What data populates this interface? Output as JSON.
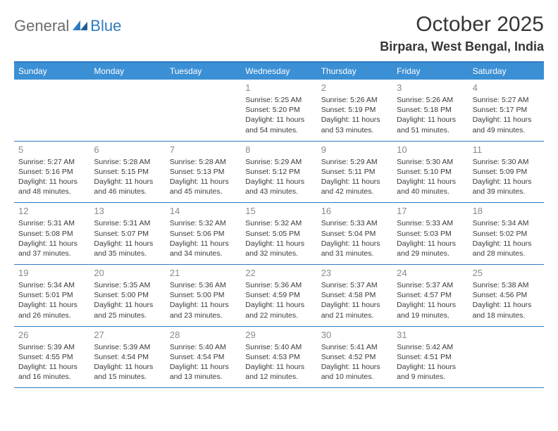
{
  "brand": {
    "part1": "General",
    "part2": "Blue"
  },
  "title": "October 2025",
  "location": "Birpara, West Bengal, India",
  "accent_color": "#3b8fd4",
  "border_color": "#2f7bbf",
  "day_headers": [
    "Sunday",
    "Monday",
    "Tuesday",
    "Wednesday",
    "Thursday",
    "Friday",
    "Saturday"
  ],
  "weeks": [
    [
      null,
      null,
      null,
      {
        "n": "1",
        "sr": "5:25 AM",
        "ss": "5:20 PM",
        "dl": "11 hours and 54 minutes."
      },
      {
        "n": "2",
        "sr": "5:26 AM",
        "ss": "5:19 PM",
        "dl": "11 hours and 53 minutes."
      },
      {
        "n": "3",
        "sr": "5:26 AM",
        "ss": "5:18 PM",
        "dl": "11 hours and 51 minutes."
      },
      {
        "n": "4",
        "sr": "5:27 AM",
        "ss": "5:17 PM",
        "dl": "11 hours and 49 minutes."
      }
    ],
    [
      {
        "n": "5",
        "sr": "5:27 AM",
        "ss": "5:16 PM",
        "dl": "11 hours and 48 minutes."
      },
      {
        "n": "6",
        "sr": "5:28 AM",
        "ss": "5:15 PM",
        "dl": "11 hours and 46 minutes."
      },
      {
        "n": "7",
        "sr": "5:28 AM",
        "ss": "5:13 PM",
        "dl": "11 hours and 45 minutes."
      },
      {
        "n": "8",
        "sr": "5:29 AM",
        "ss": "5:12 PM",
        "dl": "11 hours and 43 minutes."
      },
      {
        "n": "9",
        "sr": "5:29 AM",
        "ss": "5:11 PM",
        "dl": "11 hours and 42 minutes."
      },
      {
        "n": "10",
        "sr": "5:30 AM",
        "ss": "5:10 PM",
        "dl": "11 hours and 40 minutes."
      },
      {
        "n": "11",
        "sr": "5:30 AM",
        "ss": "5:09 PM",
        "dl": "11 hours and 39 minutes."
      }
    ],
    [
      {
        "n": "12",
        "sr": "5:31 AM",
        "ss": "5:08 PM",
        "dl": "11 hours and 37 minutes."
      },
      {
        "n": "13",
        "sr": "5:31 AM",
        "ss": "5:07 PM",
        "dl": "11 hours and 35 minutes."
      },
      {
        "n": "14",
        "sr": "5:32 AM",
        "ss": "5:06 PM",
        "dl": "11 hours and 34 minutes."
      },
      {
        "n": "15",
        "sr": "5:32 AM",
        "ss": "5:05 PM",
        "dl": "11 hours and 32 minutes."
      },
      {
        "n": "16",
        "sr": "5:33 AM",
        "ss": "5:04 PM",
        "dl": "11 hours and 31 minutes."
      },
      {
        "n": "17",
        "sr": "5:33 AM",
        "ss": "5:03 PM",
        "dl": "11 hours and 29 minutes."
      },
      {
        "n": "18",
        "sr": "5:34 AM",
        "ss": "5:02 PM",
        "dl": "11 hours and 28 minutes."
      }
    ],
    [
      {
        "n": "19",
        "sr": "5:34 AM",
        "ss": "5:01 PM",
        "dl": "11 hours and 26 minutes."
      },
      {
        "n": "20",
        "sr": "5:35 AM",
        "ss": "5:00 PM",
        "dl": "11 hours and 25 minutes."
      },
      {
        "n": "21",
        "sr": "5:36 AM",
        "ss": "5:00 PM",
        "dl": "11 hours and 23 minutes."
      },
      {
        "n": "22",
        "sr": "5:36 AM",
        "ss": "4:59 PM",
        "dl": "11 hours and 22 minutes."
      },
      {
        "n": "23",
        "sr": "5:37 AM",
        "ss": "4:58 PM",
        "dl": "11 hours and 21 minutes."
      },
      {
        "n": "24",
        "sr": "5:37 AM",
        "ss": "4:57 PM",
        "dl": "11 hours and 19 minutes."
      },
      {
        "n": "25",
        "sr": "5:38 AM",
        "ss": "4:56 PM",
        "dl": "11 hours and 18 minutes."
      }
    ],
    [
      {
        "n": "26",
        "sr": "5:39 AM",
        "ss": "4:55 PM",
        "dl": "11 hours and 16 minutes."
      },
      {
        "n": "27",
        "sr": "5:39 AM",
        "ss": "4:54 PM",
        "dl": "11 hours and 15 minutes."
      },
      {
        "n": "28",
        "sr": "5:40 AM",
        "ss": "4:54 PM",
        "dl": "11 hours and 13 minutes."
      },
      {
        "n": "29",
        "sr": "5:40 AM",
        "ss": "4:53 PM",
        "dl": "11 hours and 12 minutes."
      },
      {
        "n": "30",
        "sr": "5:41 AM",
        "ss": "4:52 PM",
        "dl": "11 hours and 10 minutes."
      },
      {
        "n": "31",
        "sr": "5:42 AM",
        "ss": "4:51 PM",
        "dl": "11 hours and 9 minutes."
      },
      null
    ]
  ],
  "labels": {
    "sunrise": "Sunrise:",
    "sunset": "Sunset:",
    "daylight": "Daylight:"
  }
}
